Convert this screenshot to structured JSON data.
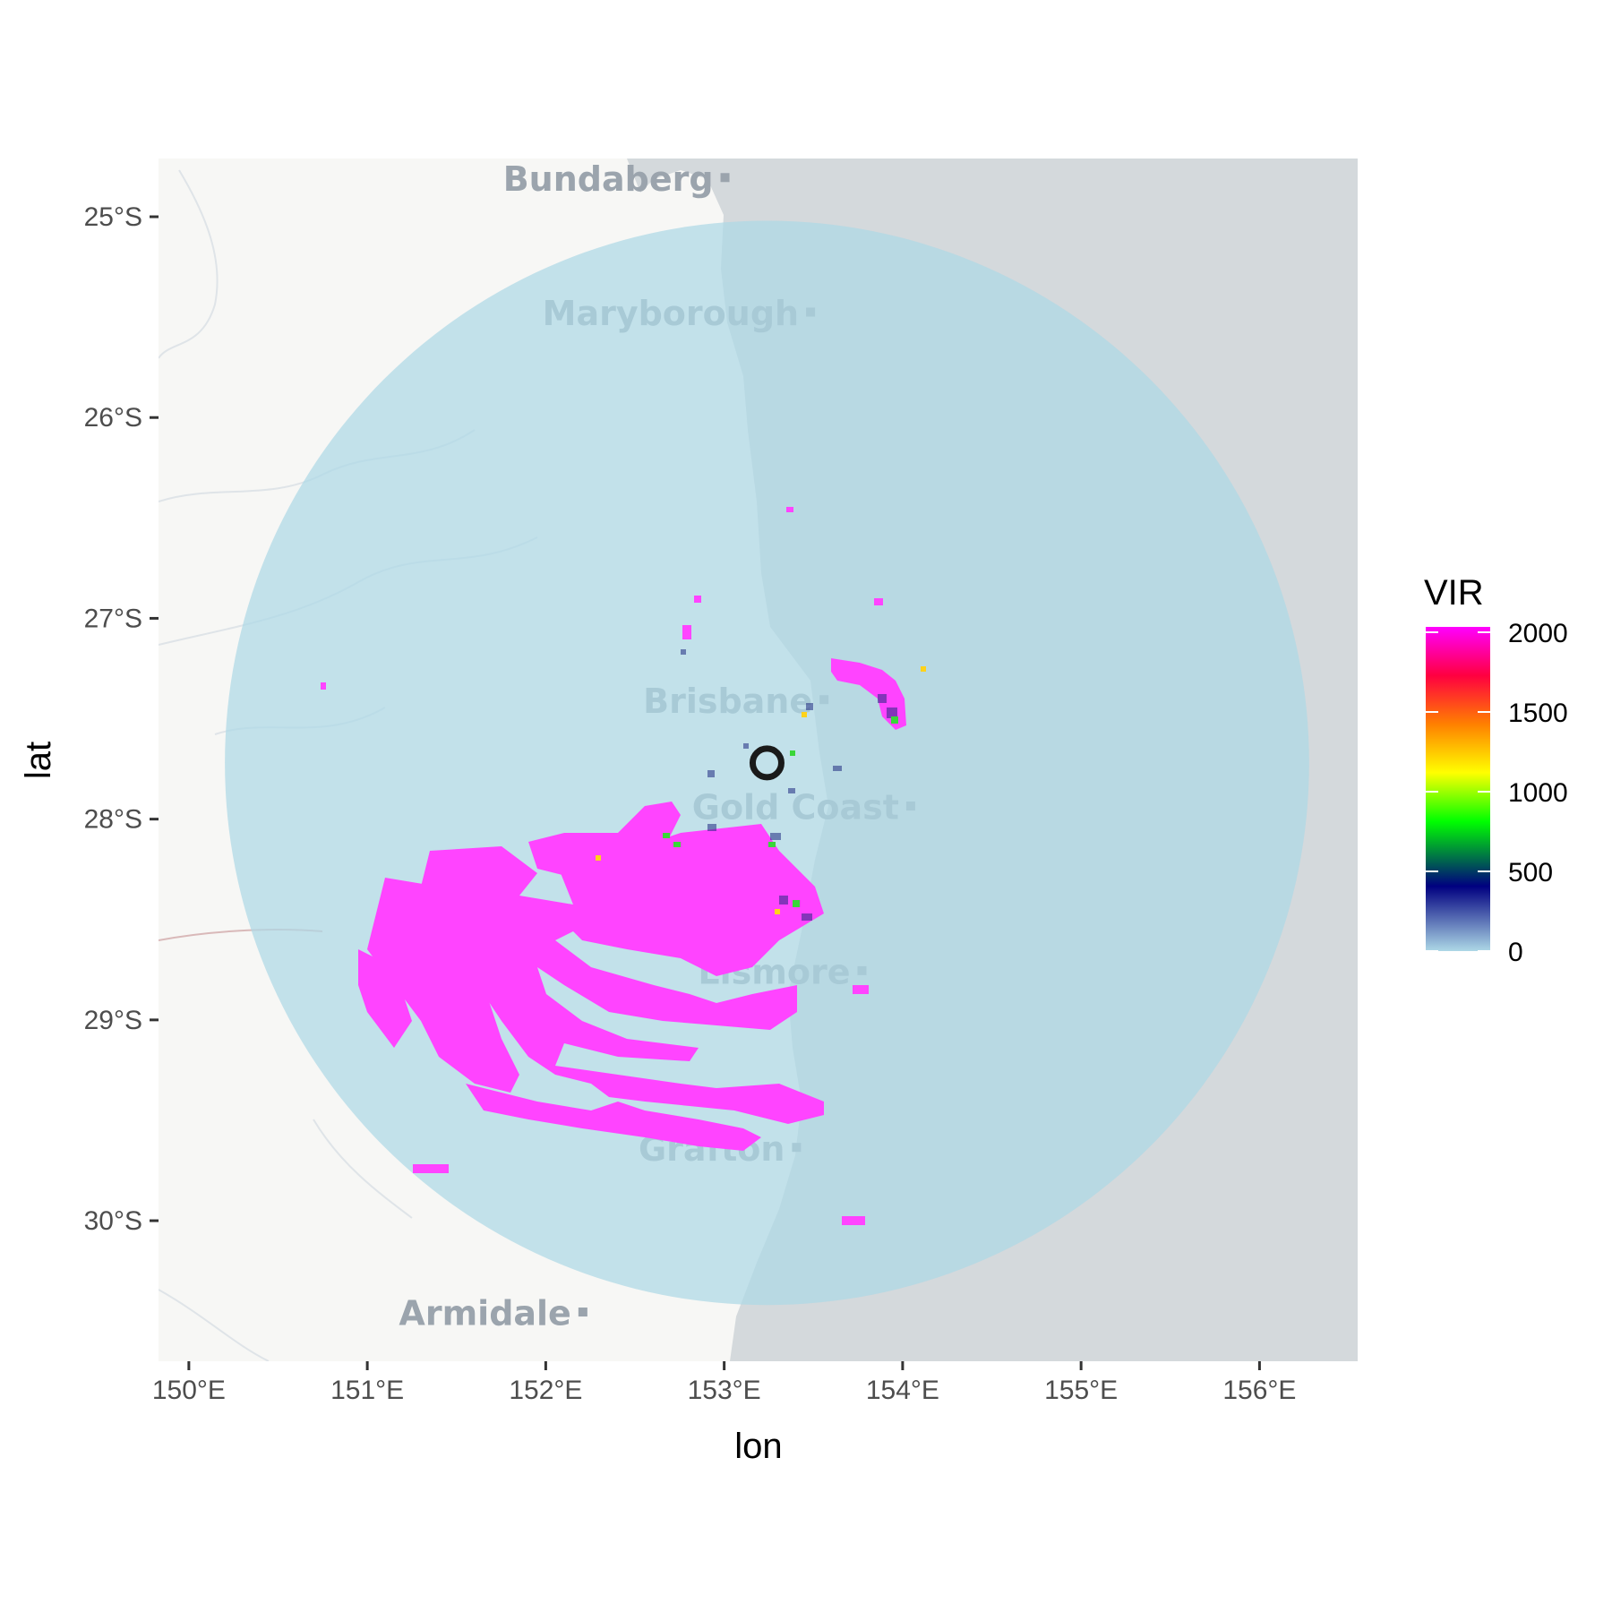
{
  "map": {
    "x_axis_title": "lon",
    "y_axis_title": "lat",
    "x_ticks": [
      {
        "value": 150,
        "label": "150°E"
      },
      {
        "value": 151,
        "label": "151°E"
      },
      {
        "value": 152,
        "label": "152°E"
      },
      {
        "value": 153,
        "label": "153°E"
      },
      {
        "value": 154,
        "label": "154°E"
      },
      {
        "value": 155,
        "label": "155°E"
      },
      {
        "value": 156,
        "label": "156°E"
      }
    ],
    "y_ticks": [
      {
        "value": -25,
        "label": "25°S"
      },
      {
        "value": -26,
        "label": "26°S"
      },
      {
        "value": -27,
        "label": "27°S"
      },
      {
        "value": -28,
        "label": "28°S"
      },
      {
        "value": -29,
        "label": "29°S"
      },
      {
        "value": -30,
        "label": "30°S"
      }
    ],
    "lon_range": [
      149.83,
      156.55
    ],
    "lat_range": [
      -30.7,
      -24.71
    ],
    "cities": [
      {
        "name": "Bundaberg",
        "lon": 152.35,
        "lat": -24.87
      },
      {
        "name": "Maryborough",
        "lon": 152.7,
        "lat": -25.54
      },
      {
        "name": "Brisbane",
        "lon": 153.02,
        "lat": -27.47
      },
      {
        "name": "Gold Coast",
        "lon": 153.4,
        "lat": -28.0
      },
      {
        "name": "Lismore",
        "lon": 153.28,
        "lat": -28.82
      },
      {
        "name": "Grafton",
        "lon": 152.93,
        "lat": -29.7
      },
      {
        "name": "Armidale",
        "lon": 151.66,
        "lat": -30.52
      }
    ],
    "radar_site": {
      "lon": 153.24,
      "lat": -27.72
    },
    "radar_coverage": {
      "center_lon": 153.24,
      "center_lat": -27.72,
      "radius_deg_lat": 2.7
    },
    "colors": {
      "land": "#f7f7f5",
      "sea": "#d4d9dc",
      "coverage": "#add8e6",
      "high_vir": "#ff44ff",
      "site_marker": "#1a1a1a"
    }
  },
  "legend": {
    "title": "VIR",
    "labels": [
      "2000",
      "1500",
      "1000",
      "500",
      "0"
    ],
    "range": [
      0,
      2000
    ],
    "gradient": [
      "#add8e6",
      "#000080",
      "#00ff00",
      "#ffff00",
      "#ff8000",
      "#ff0040",
      "#ff00ff"
    ]
  }
}
